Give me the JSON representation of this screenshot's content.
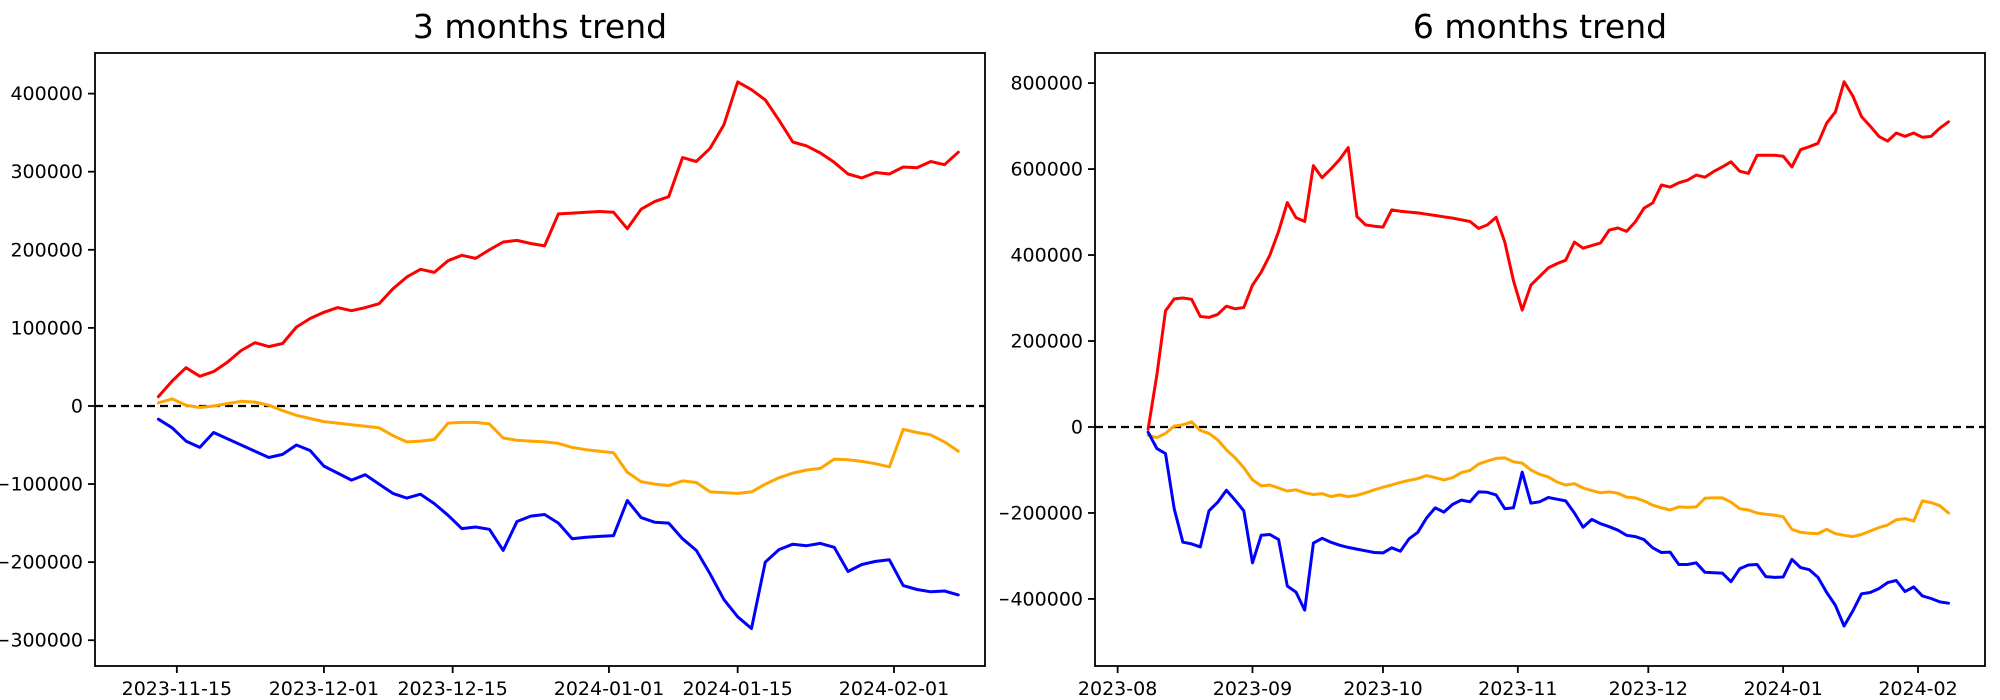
{
  "figure": {
    "background": "#ffffff"
  },
  "chart_data": [
    {
      "type": "line",
      "title": "3 months trend",
      "x_start_date": "2023-11-13",
      "x_span_days": 87,
      "xlim_days": [
        -6.9,
        89.9
      ],
      "ylim": [
        -333000,
        452000
      ],
      "grid": false,
      "legend": "none",
      "zero_line": true,
      "x_ticks": [
        {
          "day": 2,
          "label": "2023-11-15"
        },
        {
          "day": 18,
          "label": "2023-12-01"
        },
        {
          "day": 32,
          "label": "2023-12-15"
        },
        {
          "day": 49,
          "label": "2024-01-01"
        },
        {
          "day": 63,
          "label": "2024-01-15"
        },
        {
          "day": 80,
          "label": "2024-02-01"
        }
      ],
      "y_ticks": [
        {
          "value": 400000,
          "label": "400000"
        },
        {
          "value": 300000,
          "label": "300000"
        },
        {
          "value": 200000,
          "label": "200000"
        },
        {
          "value": 100000,
          "label": "100000"
        },
        {
          "value": 0,
          "label": "0"
        },
        {
          "value": -100000,
          "label": "−100000"
        },
        {
          "value": -200000,
          "label": "−200000"
        },
        {
          "value": -300000,
          "label": "−300000"
        }
      ],
      "series": [
        {
          "name": "red",
          "color": "#ff0000",
          "values": [
            12000,
            32000,
            49000,
            38000,
            44000,
            56000,
            71000,
            81000,
            76000,
            80000,
            101000,
            112000,
            120000,
            126000,
            122000,
            126000,
            131000,
            150000,
            165000,
            175000,
            171000,
            186000,
            193000,
            189000,
            200000,
            210000,
            212000,
            208000,
            205000,
            246000,
            247000,
            248000,
            249000,
            248000,
            227000,
            252000,
            262000,
            268000,
            318000,
            313000,
            330000,
            360000,
            415000,
            405000,
            392000,
            366000,
            338000,
            333000,
            324000,
            312000,
            297000,
            292000,
            299000,
            297000,
            306000,
            305000,
            313000,
            309000,
            325000
          ]
        },
        {
          "name": "orange",
          "color": "#ffa500",
          "values": [
            4000,
            9000,
            1000,
            -2000,
            0,
            3000,
            6000,
            5000,
            1000,
            -6000,
            -12000,
            -16000,
            -20000,
            -22000,
            -24000,
            -26000,
            -28000,
            -38000,
            -46000,
            -45000,
            -43000,
            -22000,
            -21000,
            -21000,
            -23000,
            -41000,
            -44000,
            -45000,
            -46000,
            -48000,
            -53000,
            -56000,
            -58000,
            -60000,
            -85000,
            -97000,
            -100000,
            -102000,
            -96000,
            -98000,
            -110000,
            -111000,
            -112000,
            -110000,
            -100000,
            -92000,
            -86000,
            -82000,
            -80000,
            -68000,
            -69000,
            -71000,
            -74000,
            -78000,
            -30000,
            -34000,
            -37000,
            -46000,
            -58000
          ]
        },
        {
          "name": "blue",
          "color": "#0000ff",
          "values": [
            -17000,
            -28000,
            -45000,
            -53000,
            -34000,
            -42000,
            -50000,
            -58000,
            -66000,
            -62000,
            -50000,
            -57000,
            -77000,
            -86000,
            -95000,
            -88000,
            -100000,
            -112000,
            -118000,
            -113000,
            -125000,
            -140000,
            -157000,
            -155000,
            -158000,
            -185000,
            -148000,
            -141000,
            -139000,
            -150000,
            -170000,
            -168000,
            -167000,
            -166000,
            -121000,
            -143000,
            -149000,
            -150000,
            -170000,
            -185000,
            -215000,
            -248000,
            -270000,
            -285000,
            -200000,
            -184000,
            -177000,
            -179000,
            -176000,
            -181000,
            -212000,
            -203000,
            -199000,
            -197000,
            -230000,
            -235000,
            -238000,
            -237000,
            -242000
          ]
        }
      ]
    },
    {
      "type": "line",
      "title": "6 months trend",
      "x_start_date": "2023-08-08",
      "x_span_days": 184,
      "xlim_days": [
        -12.2,
        192.4
      ],
      "ylim": [
        -556000,
        870000
      ],
      "grid": false,
      "legend": "none",
      "zero_line": true,
      "x_ticks": [
        {
          "day": -7,
          "label": "2023-08"
        },
        {
          "day": 24,
          "label": "2023-09"
        },
        {
          "day": 54,
          "label": "2023-10"
        },
        {
          "day": 85,
          "label": "2023-11"
        },
        {
          "day": 115,
          "label": "2023-12"
        },
        {
          "day": 146,
          "label": "2024-01"
        },
        {
          "day": 177,
          "label": "2024-02"
        }
      ],
      "y_ticks": [
        {
          "value": 800000,
          "label": "800000"
        },
        {
          "value": 600000,
          "label": "600000"
        },
        {
          "value": 400000,
          "label": "400000"
        },
        {
          "value": 200000,
          "label": "200000"
        },
        {
          "value": 0,
          "label": "0"
        },
        {
          "value": -200000,
          "label": "−200000"
        },
        {
          "value": -400000,
          "label": "−400000"
        }
      ],
      "series": [
        {
          "name": "red",
          "color": "#ff0000",
          "values": [
            -5000,
            120000,
            270000,
            298000,
            300000,
            297000,
            257000,
            255000,
            262000,
            281000,
            275000,
            278000,
            330000,
            360000,
            400000,
            455000,
            522000,
            487000,
            478000,
            608000,
            580000,
            600000,
            622000,
            650000,
            490000,
            470000,
            467000,
            465000,
            505000,
            502000,
            500000,
            498000,
            495000,
            492000,
            489000,
            486000,
            482000,
            478000,
            462000,
            470000,
            488000,
            430000,
            340000,
            272000,
            330000,
            350000,
            370000,
            380000,
            388000,
            430000,
            416000,
            422000,
            428000,
            458000,
            463000,
            455000,
            477000,
            509000,
            521000,
            563000,
            558000,
            568000,
            574000,
            586000,
            581000,
            594000,
            605000,
            617000,
            595000,
            590000,
            632000,
            632000,
            632000,
            630000,
            605000,
            645000,
            652000,
            660000,
            707000,
            733000,
            803000,
            770000,
            722000,
            700000,
            676000,
            665000,
            684000,
            676000,
            684000,
            674000,
            676000,
            695000,
            710000
          ]
        },
        {
          "name": "orange",
          "color": "#ffa500",
          "values": [
            -19000,
            -25000,
            -15000,
            2000,
            5000,
            12000,
            -8000,
            -15000,
            -30000,
            -53000,
            -72000,
            -95000,
            -123000,
            -137000,
            -135000,
            -142000,
            -149000,
            -146000,
            -153000,
            -157000,
            -155000,
            -162000,
            -158000,
            -162000,
            -159000,
            -153000,
            -146000,
            -140000,
            -135000,
            -129000,
            -124000,
            -120000,
            -113000,
            -118000,
            -123000,
            -118000,
            -106000,
            -101000,
            -86000,
            -79000,
            -73000,
            -72000,
            -81000,
            -84000,
            -100000,
            -110000,
            -116000,
            -128000,
            -135000,
            -132000,
            -142000,
            -148000,
            -153000,
            -151000,
            -154000,
            -163000,
            -165000,
            -172000,
            -182000,
            -188000,
            -193000,
            -186000,
            -187000,
            -186000,
            -166000,
            -165000,
            -165000,
            -175000,
            -190000,
            -193000,
            -200000,
            -203000,
            -205000,
            -209000,
            -238000,
            -245000,
            -247000,
            -248000,
            -238000,
            -248000,
            -252000,
            -255000,
            -250000,
            -242000,
            -234000,
            -228000,
            -216000,
            -213000,
            -219000,
            -172000,
            -176000,
            -183000,
            -200000
          ]
        },
        {
          "name": "blue",
          "color": "#0000ff",
          "values": [
            -12000,
            -50000,
            -62000,
            -190000,
            -268000,
            -272000,
            -279000,
            -195000,
            -175000,
            -147000,
            -170000,
            -195000,
            -316000,
            -252000,
            -250000,
            -262000,
            -370000,
            -384000,
            -426000,
            -270000,
            -259000,
            -268000,
            -275000,
            -280000,
            -284000,
            -288000,
            -292000,
            -293000,
            -281000,
            -289000,
            -260000,
            -245000,
            -212000,
            -188000,
            -198000,
            -180000,
            -170000,
            -174000,
            -151000,
            -152000,
            -158000,
            -190000,
            -188000,
            -105000,
            -177000,
            -174000,
            -164000,
            -168000,
            -172000,
            -200000,
            -233000,
            -215000,
            -225000,
            -232000,
            -240000,
            -252000,
            -255000,
            -262000,
            -281000,
            -292000,
            -291000,
            -320000,
            -320000,
            -316000,
            -338000,
            -339000,
            -340000,
            -360000,
            -330000,
            -321000,
            -320000,
            -348000,
            -350000,
            -349000,
            -308000,
            -327000,
            -332000,
            -350000,
            -385000,
            -415000,
            -463000,
            -428000,
            -388000,
            -385000,
            -376000,
            -362000,
            -357000,
            -383000,
            -372000,
            -393000,
            -399000,
            -407000,
            -410000
          ]
        }
      ]
    }
  ]
}
